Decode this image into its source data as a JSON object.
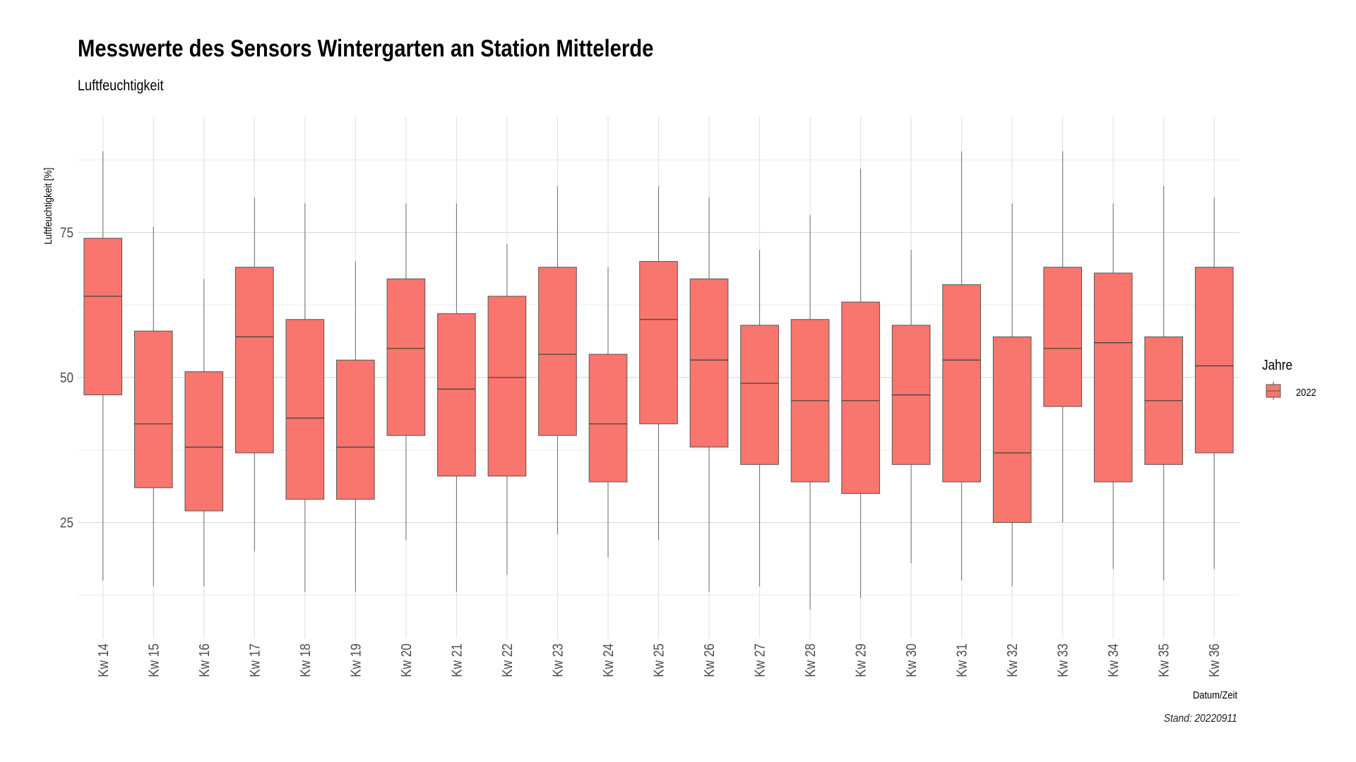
{
  "title": "Messwerte des Sensors Wintergarten an Station Mittelerde",
  "subtitle": "Luftfeuchtigkeit",
  "caption": "Stand: 20220911",
  "chart_data": {
    "type": "boxplot",
    "xlabel": "Datum/Zeit",
    "ylabel": "Luftfeuchtigkeit [%]",
    "ylim": [
      5,
      95
    ],
    "yticks": [
      25,
      50,
      75
    ],
    "grid": true,
    "legend": {
      "title": "Jahre",
      "position": "right",
      "entries": [
        {
          "label": "2022",
          "color": "#F8766D"
        }
      ]
    },
    "categories": [
      "Kw 14",
      "Kw 15",
      "Kw 16",
      "Kw 17",
      "Kw 18",
      "Kw 19",
      "Kw 20",
      "Kw 21",
      "Kw 22",
      "Kw 23",
      "Kw 24",
      "Kw 25",
      "Kw 26",
      "Kw 27",
      "Kw 28",
      "Kw 29",
      "Kw 30",
      "Kw 31",
      "Kw 32",
      "Kw 33",
      "Kw 34",
      "Kw 35",
      "Kw 36"
    ],
    "series": [
      {
        "name": "2022",
        "color": "#F8766D",
        "boxes": [
          {
            "min": 15,
            "q1": 47,
            "median": 64,
            "q3": 74,
            "max": 89
          },
          {
            "min": 14,
            "q1": 31,
            "median": 42,
            "q3": 58,
            "max": 76
          },
          {
            "min": 14,
            "q1": 27,
            "median": 38,
            "q3": 51,
            "max": 67
          },
          {
            "min": 20,
            "q1": 37,
            "median": 57,
            "q3": 69,
            "max": 81
          },
          {
            "min": 13,
            "q1": 29,
            "median": 43,
            "q3": 60,
            "max": 80
          },
          {
            "min": 13,
            "q1": 29,
            "median": 38,
            "q3": 53,
            "max": 70
          },
          {
            "min": 22,
            "q1": 40,
            "median": 55,
            "q3": 67,
            "max": 80
          },
          {
            "min": 13,
            "q1": 33,
            "median": 48,
            "q3": 61,
            "max": 80
          },
          {
            "min": 16,
            "q1": 33,
            "median": 50,
            "q3": 64,
            "max": 73
          },
          {
            "min": 23,
            "q1": 40,
            "median": 54,
            "q3": 69,
            "max": 83
          },
          {
            "min": 19,
            "q1": 32,
            "median": 42,
            "q3": 54,
            "max": 69
          },
          {
            "min": 22,
            "q1": 42,
            "median": 60,
            "q3": 70,
            "max": 83
          },
          {
            "min": 13,
            "q1": 38,
            "median": 53,
            "q3": 67,
            "max": 81
          },
          {
            "min": 14,
            "q1": 35,
            "median": 49,
            "q3": 59,
            "max": 72
          },
          {
            "min": 10,
            "q1": 32,
            "median": 46,
            "q3": 60,
            "max": 78
          },
          {
            "min": 12,
            "q1": 30,
            "median": 46,
            "q3": 63,
            "max": 86
          },
          {
            "min": 18,
            "q1": 35,
            "median": 47,
            "q3": 59,
            "max": 72
          },
          {
            "min": 15,
            "q1": 32,
            "median": 53,
            "q3": 66,
            "max": 89
          },
          {
            "min": 14,
            "q1": 25,
            "median": 37,
            "q3": 57,
            "max": 80
          },
          {
            "min": 25,
            "q1": 45,
            "median": 55,
            "q3": 69,
            "max": 89
          },
          {
            "min": 17,
            "q1": 32,
            "median": 56,
            "q3": 68,
            "max": 80
          },
          {
            "min": 15,
            "q1": 35,
            "median": 46,
            "q3": 57,
            "max": 83
          },
          {
            "min": 17,
            "q1": 37,
            "median": 52,
            "q3": 69,
            "max": 81
          }
        ]
      }
    ]
  }
}
